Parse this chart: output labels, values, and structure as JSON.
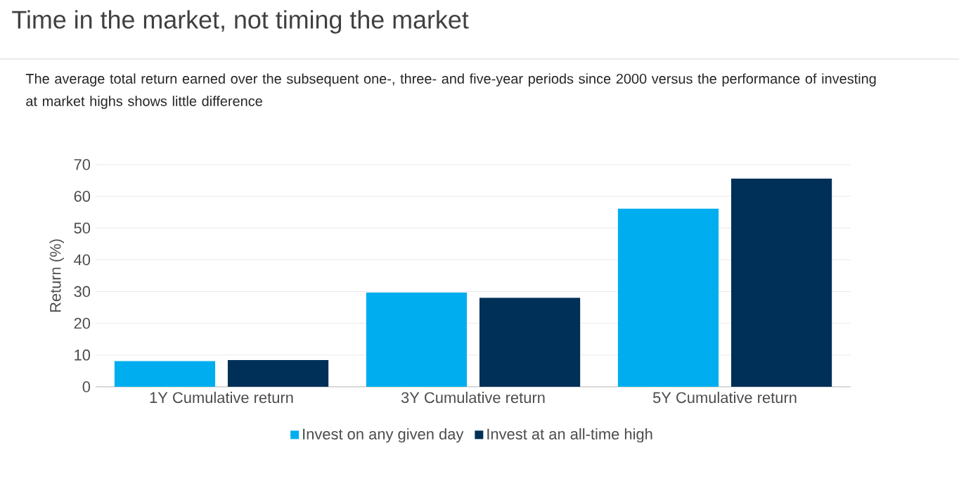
{
  "chart_data": {
    "type": "bar",
    "title": "Time in the market, not timing the market",
    "subtitle": "The average total return earned over the subsequent one-, three- and five-year periods since 2000 versus the performance of investing at market highs shows little difference",
    "ylabel": "Return (%)",
    "categories": [
      "1Y Cumulative return",
      "3Y Cumulative return",
      "5Y Cumulative return"
    ],
    "series": [
      {
        "name": "Invest on any given day",
        "color": "#00aeef",
        "values": [
          8.1,
          29.7,
          56.1
        ]
      },
      {
        "name": "Invest at an all-time high",
        "color": "#003057",
        "values": [
          8.4,
          28.0,
          65.6
        ]
      }
    ],
    "ylim": [
      0,
      70
    ],
    "yticks": [
      0,
      10,
      20,
      30,
      40,
      50,
      60,
      70
    ],
    "grid": "y",
    "legend": "bottom"
  }
}
